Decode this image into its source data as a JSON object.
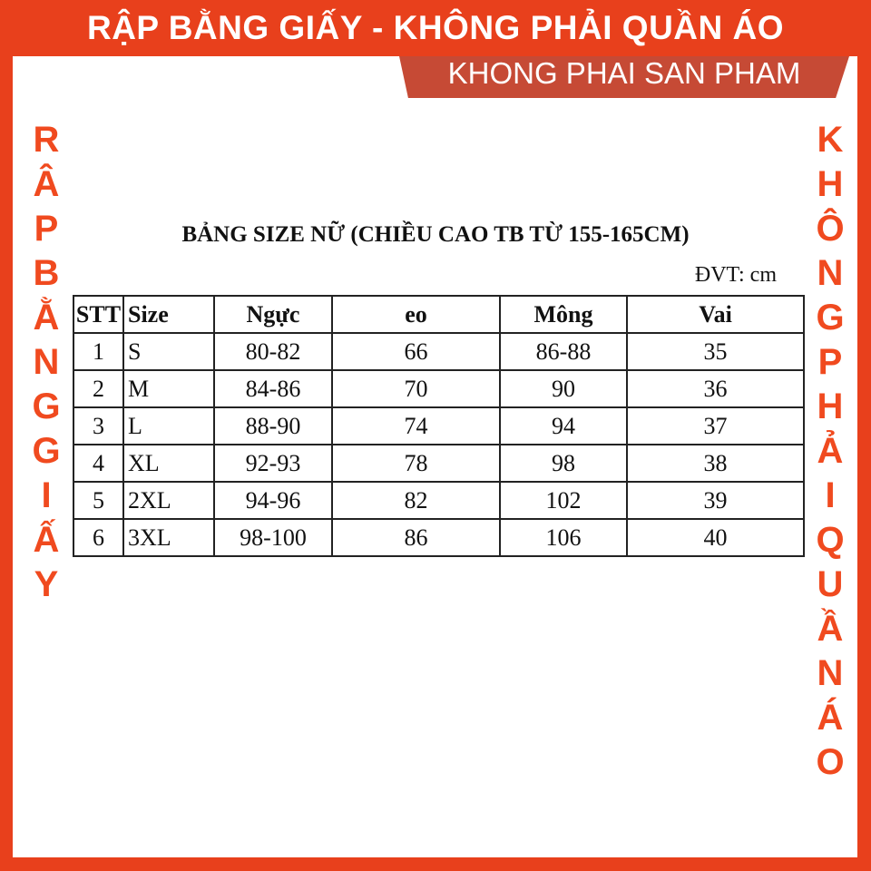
{
  "banner": {
    "title": "RẬP BẰNG GIẤY - KHÔNG PHẢI QUẦN ÁO",
    "subtitle": "KHONG PHAI SAN PHAM"
  },
  "side_left": [
    "R",
    "Â",
    "P",
    "B",
    "Ằ",
    "N",
    "G",
    "G",
    "I",
    "Ấ",
    "Y"
  ],
  "side_right": [
    "K",
    "H",
    "Ô",
    "N",
    "G",
    "P",
    "H",
    "Ả",
    "I",
    "Q",
    "U",
    "Ầ",
    "N",
    "Á",
    "O"
  ],
  "table": {
    "title": "BẢNG SIZE NỮ (CHIỀU CAO TB TỪ 155-165CM)",
    "unit": "ĐVT: cm",
    "headers": [
      "STT",
      "Size",
      "Ngực",
      "eo",
      "Mông",
      "Vai"
    ],
    "rows": [
      [
        "1",
        "S",
        "80-82",
        "66",
        "86-88",
        "35"
      ],
      [
        "2",
        "M",
        "84-86",
        "70",
        "90",
        "36"
      ],
      [
        "3",
        "L",
        "88-90",
        "74",
        "94",
        "37"
      ],
      [
        "4",
        "XL",
        "92-93",
        "78",
        "98",
        "38"
      ],
      [
        "5",
        "2XL",
        "94-96",
        "82",
        "102",
        "39"
      ],
      [
        "6",
        "3XL",
        "98-100",
        "86",
        "106",
        "40"
      ]
    ]
  },
  "colors": {
    "accent": "#e8401c",
    "sub_banner": "#c64a35"
  }
}
